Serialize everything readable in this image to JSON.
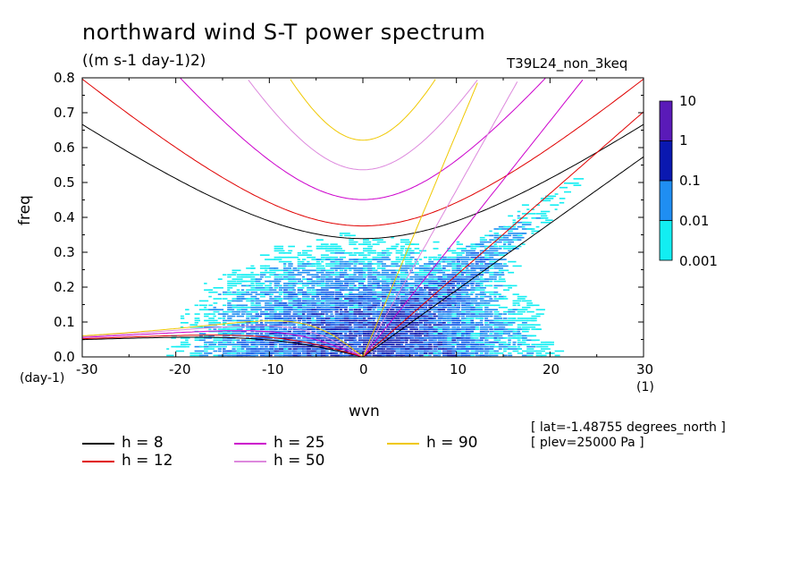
{
  "chart_data": {
    "type": "heatmap",
    "title": "northward wind S-T power spectrum",
    "subtitle": "((m s-1 day-1)2)",
    "experiment": "T39L24_non_3keq",
    "xlabel": "wvn",
    "ylabel": "freq",
    "x_unit": "(1)",
    "y_unit": "(day-1)",
    "xlim": [
      -30,
      30
    ],
    "ylim": [
      0,
      0.8
    ],
    "x_ticks": [
      "-30",
      "-20",
      "-10",
      "0",
      "10",
      "20",
      "30"
    ],
    "y_ticks": [
      "0.0",
      "0.1",
      "0.2",
      "0.3",
      "0.4",
      "0.5",
      "0.6",
      "0.7",
      "0.8"
    ],
    "colorbar": {
      "levels": [
        "10",
        "1",
        "0.1",
        "0.01",
        "0.001"
      ],
      "colors": [
        "#5a1ab8",
        "#0a18b0",
        "#0b58e8",
        "#1f8ef2",
        "#12eef2"
      ]
    },
    "annotations": [
      "[ lat=-1.48755 degrees_north ]",
      "[ plev=25000 Pa ]"
    ],
    "legend": [
      {
        "label": "h =  8",
        "color": "#000000"
      },
      {
        "label": "h = 12",
        "color": "#e00000"
      },
      {
        "label": "h = 25",
        "color": "#cc00cc"
      },
      {
        "label": "h = 50",
        "color": "#dd88dd"
      },
      {
        "label": "h = 90",
        "color": "#f0c800"
      }
    ],
    "series": [
      {
        "name": "h =  8",
        "equivalent_depth": 8
      },
      {
        "name": "h = 12",
        "equivalent_depth": 12
      },
      {
        "name": "h = 25",
        "equivalent_depth": 25
      },
      {
        "name": "h = 50",
        "equivalent_depth": 50
      },
      {
        "name": "h = 90",
        "equivalent_depth": 90
      }
    ]
  }
}
